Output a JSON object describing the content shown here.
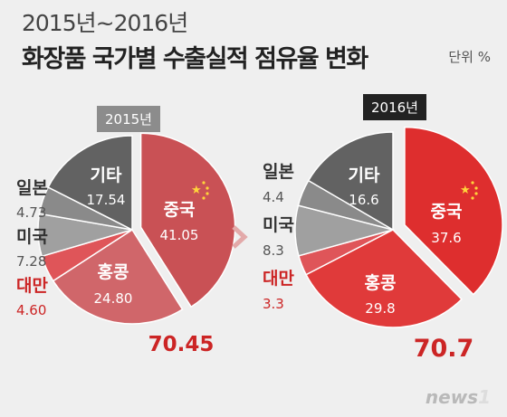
{
  "header": {
    "subtitle": "2015년~2016년",
    "title": "화장품 국가별 수출실적 점유율 변화",
    "unit": "단위 %"
  },
  "colors": {
    "china_2015": "#c95155",
    "china_2016": "#de2e2e",
    "hongkong_2015": "#d0666a",
    "hongkong_2016": "#e03a3a",
    "taiwan": "#df5559",
    "usa": "#a0a0a0",
    "japan": "#8a8a8a",
    "etc": "#626262",
    "total": "#cc2525"
  },
  "chart_data": [
    {
      "type": "pie",
      "title": "2015년",
      "slices": [
        {
          "label": "중국",
          "value": 41.05,
          "display": "41.05"
        },
        {
          "label": "홍콩",
          "value": 24.8,
          "display": "24.80"
        },
        {
          "label": "대만",
          "value": 4.6,
          "display": "4.60"
        },
        {
          "label": "미국",
          "value": 7.28,
          "display": "7.28"
        },
        {
          "label": "일본",
          "value": 4.73,
          "display": "4.73"
        },
        {
          "label": "기타",
          "value": 17.54,
          "display": "17.54"
        }
      ],
      "total": "70.45"
    },
    {
      "type": "pie",
      "title": "2016년",
      "slices": [
        {
          "label": "중국",
          "value": 37.6,
          "display": "37.6"
        },
        {
          "label": "홍콩",
          "value": 29.8,
          "display": "29.8"
        },
        {
          "label": "대만",
          "value": 3.3,
          "display": "3.3"
        },
        {
          "label": "미국",
          "value": 8.3,
          "display": "8.3"
        },
        {
          "label": "일본",
          "value": 4.4,
          "display": "4.4"
        },
        {
          "label": "기타",
          "value": 16.6,
          "display": "16.6"
        }
      ],
      "total": "70.7"
    }
  ],
  "watermark": "news1"
}
